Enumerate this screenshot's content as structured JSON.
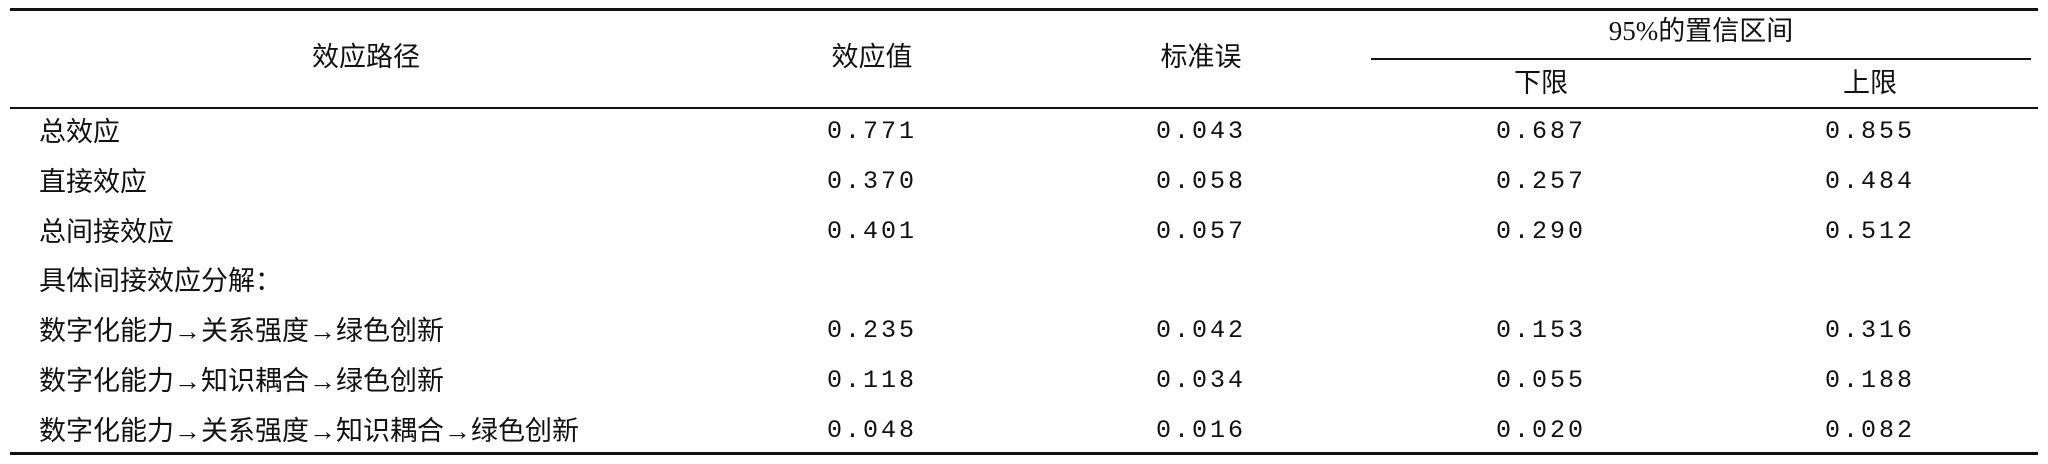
{
  "table": {
    "header": {
      "path": "效应路径",
      "effect": "效应值",
      "se": "标准误",
      "ci": "95%的置信区间",
      "lower": "下限",
      "upper": "上限"
    },
    "rows": [
      [
        "总效应",
        "0.771",
        "0.043",
        "0.687",
        "0.855"
      ],
      [
        "直接效应",
        "0.370",
        "0.058",
        "0.257",
        "0.484"
      ],
      [
        "总间接效应",
        "0.401",
        "0.057",
        "0.290",
        "0.512"
      ],
      [
        "具体间接效应分解："
      ],
      [
        "数字化能力→关系强度→绿色创新",
        "0.235",
        "0.042",
        "0.153",
        "0.316"
      ],
      [
        "数字化能力→知识耦合→绿色创新",
        "0.118",
        "0.034",
        "0.055",
        "0.188"
      ],
      [
        "数字化能力→关系强度→知识耦合→绿色创新",
        "0.048",
        "0.016",
        "0.020",
        "0.082"
      ]
    ]
  }
}
